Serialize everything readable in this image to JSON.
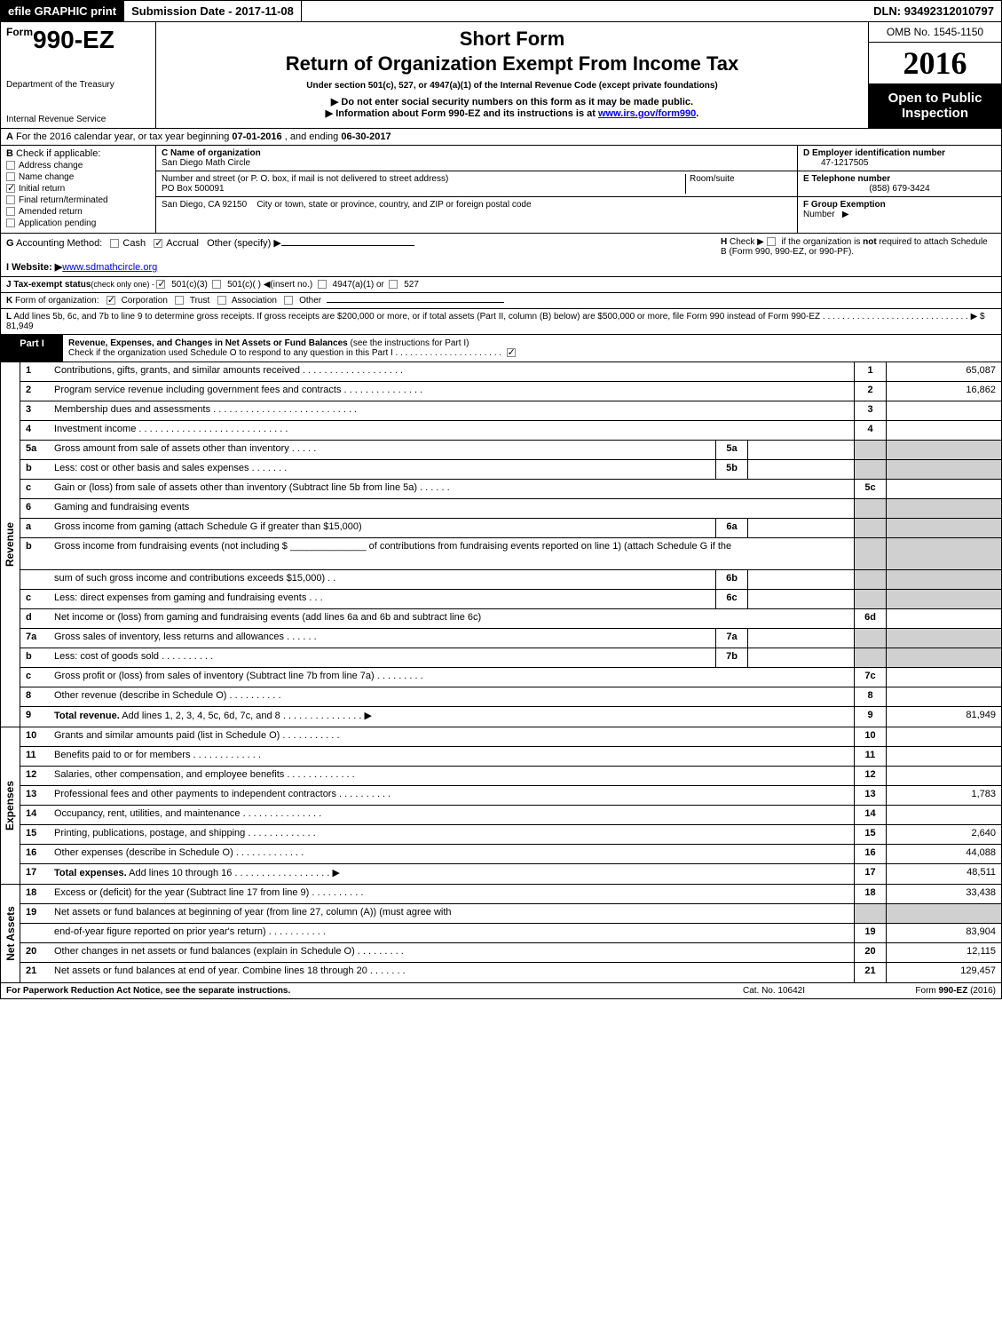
{
  "topbar": {
    "print": "efile GRAPHIC print",
    "sub_date_label": "Submission Date - ",
    "sub_date": "2017-11-08",
    "dln_label": "DLN: ",
    "dln": "93492312010797"
  },
  "header": {
    "form_prefix": "Form",
    "form_no": "990-EZ",
    "dept1": "Department of the Treasury",
    "dept2": "Internal Revenue Service",
    "short_form": "Short Form",
    "return_title": "Return of Organization Exempt From Income Tax",
    "under": "Under section 501(c), 527, or 4947(a)(1) of the Internal Revenue Code (except private foundations)",
    "line2": "Do not enter social security numbers on this form as it may be made public.",
    "line3_a": "Information about Form 990-EZ and its instructions is at ",
    "line3_link": "www.irs.gov/form990",
    "line3_b": ".",
    "omb": "OMB No. 1545-1150",
    "year": "2016",
    "open1": "Open to Public",
    "open2": "Inspection"
  },
  "rowA": {
    "label_a": "A",
    "text1": "  For the 2016 calendar year, or tax year beginning ",
    "begin": "07-01-2016",
    "text2": " , and ending ",
    "end": "06-30-2017"
  },
  "colB": {
    "label": "B",
    "check_if": "  Check if applicable:",
    "items": [
      "Address change",
      "Name change",
      "Initial return",
      "Final return/terminated",
      "Amended return",
      "Application pending"
    ],
    "checked_idx": 2
  },
  "colMid": {
    "c_label": "C Name of organization",
    "c_name": "San Diego Math Circle",
    "addr_label": "Number and street (or P. O. box, if mail is not delivered to street address)",
    "addr": "PO Box 500091",
    "room_label": "Room/suite",
    "city_label": "City or town, state or province, country, and ZIP or foreign postal code",
    "city": "San Diego, CA  92150"
  },
  "colDEF": {
    "d_label": "D Employer identification number",
    "d_val": "47-1217505",
    "e_label": "E Telephone number",
    "e_val": "(858) 679-3424",
    "f_label": "F Group Exemption",
    "f_label2": "Number",
    "f_arrow": "▶"
  },
  "rowGH": {
    "g_label": "G",
    "g_text": " Accounting Method:",
    "g_cash": "Cash",
    "g_accrual": "Accrual",
    "g_other": "Other (specify) ▶",
    "i_label": "I Website: ▶",
    "i_link": "www.sdmathcircle.org",
    "h_label": "H",
    "h_text1": "  Check ▶ ",
    "h_text2": " if the organization is ",
    "h_not": "not",
    "h_text3": " required to attach Schedule B (Form 990, 990-EZ, or 990-PF)."
  },
  "rowJ": {
    "label": "J Tax-exempt status",
    "sub": "(check only one) - ",
    "o1": "501(c)(3)",
    "o2": "501(c)(  ) ◀(insert no.)",
    "o3": "4947(a)(1) or",
    "o4": "527"
  },
  "rowK": {
    "label": "K",
    "text": " Form of organization:",
    "o1": "Corporation",
    "o2": "Trust",
    "o3": "Association",
    "o4": "Other"
  },
  "rowL": {
    "label": "L",
    "text": " Add lines 5b, 6c, and 7b to line 9 to determine gross receipts. If gross receipts are $200,000 or more, or if total assets (Part II, column (B) below) are $500,000 or more, file Form 990 instead of Form 990-EZ  .  .  .  .  .  .  .  .  .  .  .  .  .  .  .  .  .  .  .  .  .  .  .  .  .  .  .  .  .  .  ▶ $ 81,949"
  },
  "part1": {
    "lbl": "Part I",
    "title": "Revenue, Expenses, and Changes in Net Assets or Fund Balances",
    "sub": " (see the instructions for Part I)",
    "check_line": "Check if the organization used Schedule O to respond to any question in this Part I .  .  .  .  .  .  .  .  .  .  .  .  .  .  .  .  .  .  .  .  .  ."
  },
  "sections": {
    "revenue_label": "Revenue",
    "expenses_label": "Expenses",
    "net_label": "Net Assets"
  },
  "revenue": [
    {
      "n": "1",
      "d": "Contributions, gifts, grants, and similar amounts received  .  .  .  .  .  .  .  .  .  .  .  .  .  .  .  .  .  .  .",
      "ln": "1",
      "v": "65,087"
    },
    {
      "n": "2",
      "d": "Program service revenue including government fees and contracts  .  .  .  .  .  .  .  .  .  .  .  .  .  .  .",
      "ln": "2",
      "v": "16,862"
    },
    {
      "n": "3",
      "d": "Membership dues and assessments  .  .  .  .  .  .  .  .  .  .  .  .  .  .  .  .  .  .  .  .  .  .  .  .  .  .  .",
      "ln": "3",
      "v": ""
    },
    {
      "n": "4",
      "d": "Investment income  .  .  .  .  .  .  .  .  .  .  .  .  .  .  .  .  .  .  .  .  .  .  .  .  .  .  .  .",
      "ln": "4",
      "v": ""
    }
  ],
  "rev_sub": [
    {
      "n": "5a",
      "d": "Gross amount from sale of assets other than inventory  .  .  .  .  .",
      "sn": "5a",
      "sv": "",
      "shade": true
    },
    {
      "n": "b",
      "d": "Less: cost or other basis and sales expenses  .  .  .  .  .  .  .",
      "sn": "5b",
      "sv": "",
      "shade": true
    },
    {
      "n": "c",
      "d": "Gain or (loss) from sale of assets other than inventory (Subtract line 5b from line 5a)            .    .    .    .    .    .",
      "ln": "5c",
      "v": ""
    },
    {
      "n": "6",
      "d": "Gaming and fundraising events",
      "shade": true,
      "noLn": true
    },
    {
      "n": "a",
      "d": "Gross income from gaming (attach Schedule G if greater than $15,000)",
      "sn": "6a",
      "sv": "",
      "shade": true
    },
    {
      "n": "b",
      "d": "Gross income from fundraising events (not including $ ______________    of contributions from fundraising events reported on line 1) (attach Schedule G if the",
      "shade": true,
      "noLn": true,
      "tall": true
    },
    {
      "n": "",
      "d": "sum of such gross income and contributions exceeds $15,000)           .    .",
      "sn": "6b",
      "sv": "",
      "shade": true
    },
    {
      "n": "c",
      "d": "Less: direct expenses from gaming and fundraising events           .    .    .",
      "sn": "6c",
      "sv": "",
      "shade": true
    },
    {
      "n": "d",
      "d": "Net income or (loss) from gaming and fundraising events (add lines 6a and 6b and subtract line 6c)",
      "ln": "6d",
      "v": ""
    },
    {
      "n": "7a",
      "d": "Gross sales of inventory, less returns and allowances           .    .    .    .    .    .",
      "sn": "7a",
      "sv": "",
      "shade": true
    },
    {
      "n": "b",
      "d": "Less: cost of goods sold                        .    .    .    .    .    .    .    .    .    .",
      "sn": "7b",
      "sv": "",
      "shade": true
    },
    {
      "n": "c",
      "d": "Gross profit or (loss) from sales of inventory (Subtract line 7b from line 7a)           .    .    .    .    .    .    .    .    .",
      "ln": "7c",
      "v": ""
    },
    {
      "n": "8",
      "d": "Other revenue (describe in Schedule O)                                .    .    .    .    .    .    .    .    .    .",
      "ln": "8",
      "v": ""
    },
    {
      "n": "9",
      "d_bold": "Total revenue.",
      "d": " Add lines 1, 2, 3, 4, 5c, 6d, 7c, and 8         .    .    .    .    .    .    .    .    .    .    .    .    .    .    .  ▶",
      "ln": "9",
      "v": "81,949"
    }
  ],
  "expenses": [
    {
      "n": "10",
      "d": "Grants and similar amounts paid (list in Schedule O)                 .    .    .    .    .    .    .    .    .    .    .",
      "ln": "10",
      "v": ""
    },
    {
      "n": "11",
      "d": "Benefits paid to or for members                          .    .    .    .    .    .    .    .    .    .    .    .    .",
      "ln": "11",
      "v": ""
    },
    {
      "n": "12",
      "d": "Salaries, other compensation, and employee benefits         .    .    .    .    .    .    .    .    .    .    .    .    .",
      "ln": "12",
      "v": ""
    },
    {
      "n": "13",
      "d": "Professional fees and other payments to independent contractors         .    .    .    .    .    .    .    .    .    .",
      "ln": "13",
      "v": "1,783"
    },
    {
      "n": "14",
      "d": "Occupancy, rent, utilities, and maintenance         .    .    .    .    .    .    .    .    .    .    .    .    .    .    .",
      "ln": "14",
      "v": ""
    },
    {
      "n": "15",
      "d": "Printing, publications, postage, and shipping                 .    .    .    .    .    .    .    .    .    .    .    .    .",
      "ln": "15",
      "v": "2,640"
    },
    {
      "n": "16",
      "d": "Other expenses (describe in Schedule O)                     .    .    .    .    .    .    .    .    .    .    .    .    .",
      "ln": "16",
      "v": "44,088"
    },
    {
      "n": "17",
      "d_bold": "Total expenses.",
      "d": " Add lines 10 through 16              .    .    .    .    .    .    .    .    .    .    .    .    .    .    .    .    .    .  ▶",
      "ln": "17",
      "v": "48,511"
    }
  ],
  "net": [
    {
      "n": "18",
      "d": "Excess or (deficit) for the year (Subtract line 17 from line 9)                 .    .    .    .    .    .    .    .    .    .",
      "ln": "18",
      "v": "33,438"
    },
    {
      "n": "19",
      "d": "Net assets or fund balances at beginning of year (from line 27, column (A)) (must agree with",
      "shade": true,
      "noLn": true
    },
    {
      "n": "",
      "d": "end-of-year figure reported on prior year's return)                 .    .    .    .    .    .    .    .    .    .    .",
      "ln": "19",
      "v": "83,904"
    },
    {
      "n": "20",
      "d": "Other changes in net assets or fund balances (explain in Schedule O)         .    .    .    .    .    .    .    .    .",
      "ln": "20",
      "v": "12,115"
    },
    {
      "n": "21",
      "d": "Net assets or fund balances at end of year. Combine lines 18 through 20             .    .    .    .    .    .    .",
      "ln": "21",
      "v": "129,457"
    }
  ],
  "footer": {
    "l": "For Paperwork Reduction Act Notice, see the separate instructions.",
    "m": "Cat. No. 10642I",
    "r": "Form 990-EZ (2016)"
  }
}
